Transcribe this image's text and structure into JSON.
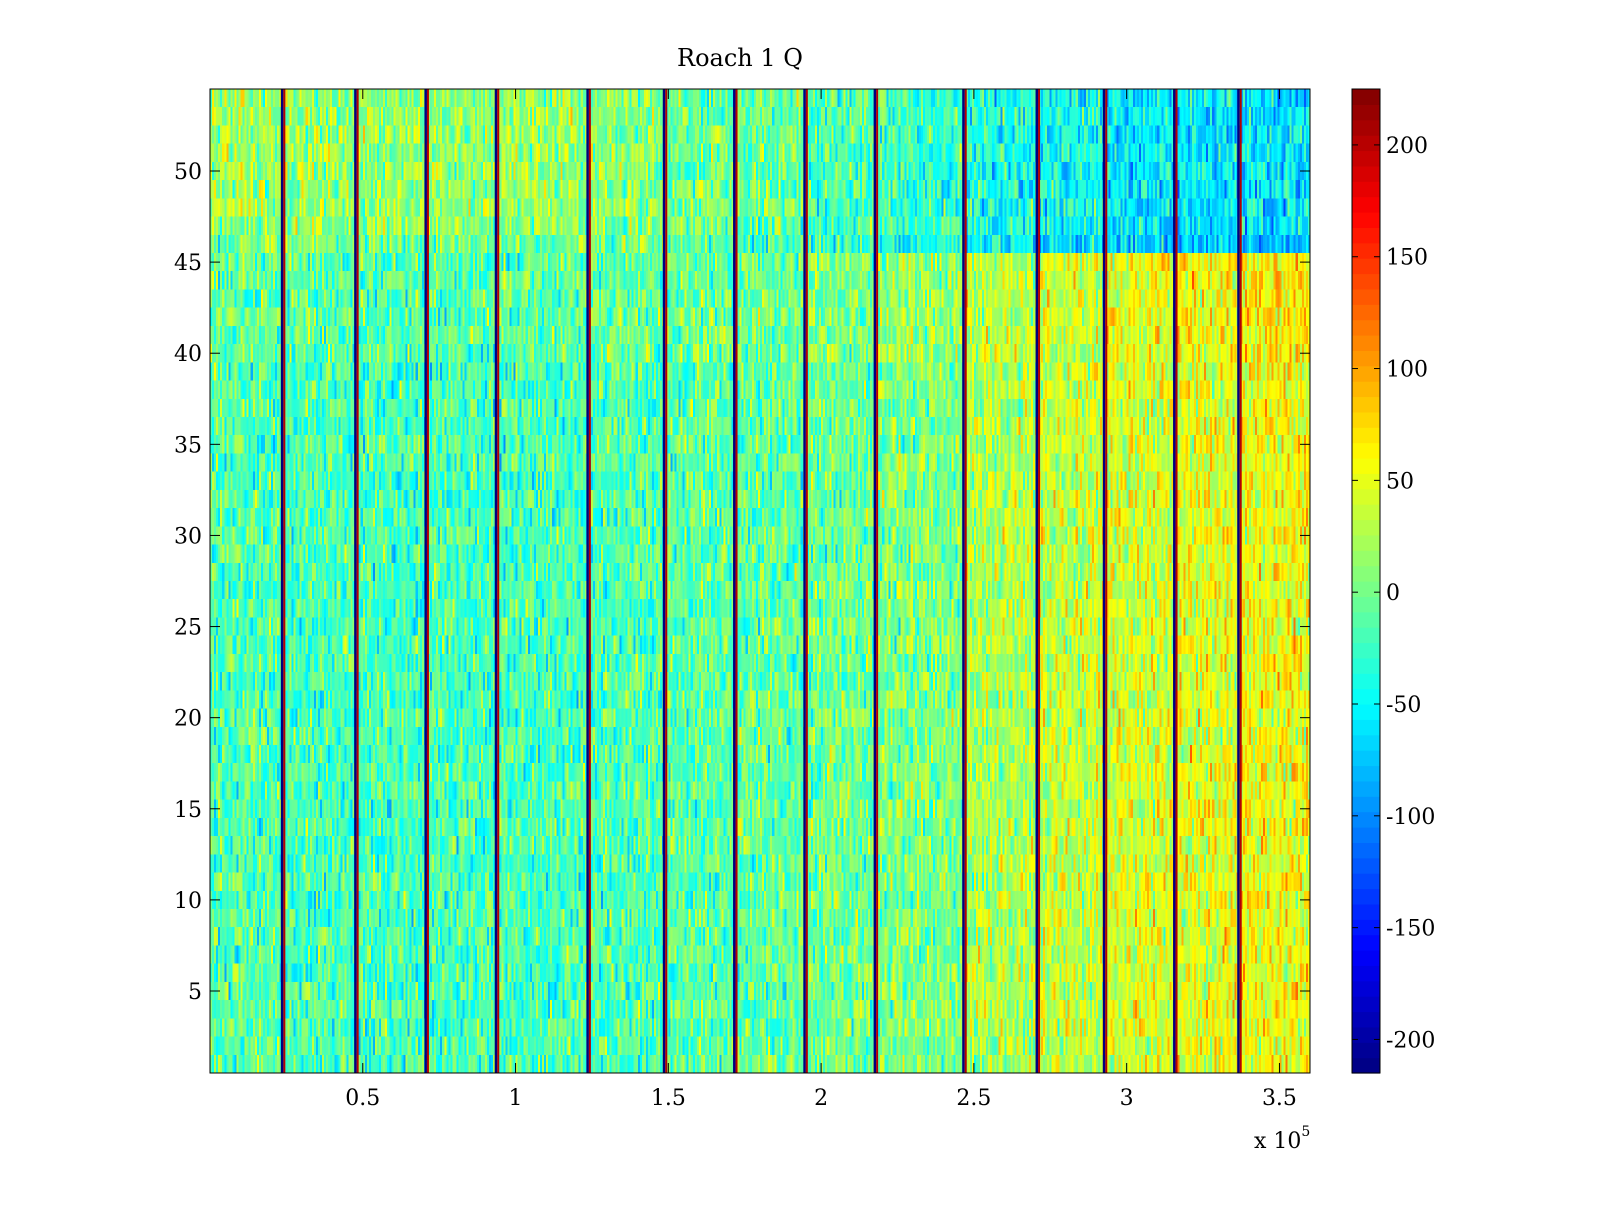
{
  "figure": {
    "background": "#ffffff"
  },
  "chart_data": {
    "type": "heatmap",
    "title": "Roach 1 Q",
    "xlabel": "",
    "ylabel": "",
    "x_multiplier_label": {
      "base": "x 10",
      "exponent": "5"
    },
    "xlim": [
      0,
      360000
    ],
    "ylim": [
      0.5,
      54.5
    ],
    "x_ticks": [
      50000,
      100000,
      150000,
      200000,
      250000,
      300000,
      350000
    ],
    "x_tick_labels": [
      "0.5",
      "1",
      "1.5",
      "2",
      "2.5",
      "3",
      "3.5"
    ],
    "y_ticks": [
      5,
      10,
      15,
      20,
      25,
      30,
      35,
      40,
      45,
      50
    ],
    "y_tick_labels": [
      "5",
      "10",
      "15",
      "20",
      "25",
      "30",
      "35",
      "40",
      "45",
      "50"
    ],
    "rows": 54,
    "colormap": "jet",
    "colorbar": {
      "clim": [
        -215,
        225
      ],
      "ticks": [
        -200,
        -150,
        -100,
        -50,
        0,
        50,
        100,
        150,
        200
      ],
      "tick_labels": [
        "-200",
        "-150",
        "-100",
        "-50",
        "0",
        "50",
        "100",
        "150",
        "200"
      ]
    },
    "segment_boundaries_x": [
      24000,
      48000,
      71000,
      94000,
      124000,
      149000,
      172000,
      195000,
      218000,
      247000,
      271000,
      293000,
      316000,
      337000
    ],
    "segments": [
      {
        "x_range": [
          0,
          24000
        ],
        "mean_level_rows_1_45": -15,
        "mean_level_rows_46_54": 20
      },
      {
        "x_range": [
          24000,
          48000
        ],
        "mean_level_rows_1_45": -18,
        "mean_level_rows_46_54": 15
      },
      {
        "x_range": [
          48000,
          71000
        ],
        "mean_level_rows_1_45": -20,
        "mean_level_rows_46_54": 15
      },
      {
        "x_range": [
          71000,
          94000
        ],
        "mean_level_rows_1_45": -20,
        "mean_level_rows_46_54": 15
      },
      {
        "x_range": [
          94000,
          124000
        ],
        "mean_level_rows_1_45": -18,
        "mean_level_rows_46_54": 15
      },
      {
        "x_range": [
          124000,
          149000
        ],
        "mean_level_rows_1_45": -15,
        "mean_level_rows_46_54": 10
      },
      {
        "x_range": [
          149000,
          172000
        ],
        "mean_level_rows_1_45": -10,
        "mean_level_rows_46_54": 0
      },
      {
        "x_range": [
          172000,
          195000
        ],
        "mean_level_rows_1_45": -8,
        "mean_level_rows_46_54": -5
      },
      {
        "x_range": [
          195000,
          218000
        ],
        "mean_level_rows_1_45": -2,
        "mean_level_rows_46_54": -15
      },
      {
        "x_range": [
          218000,
          247000
        ],
        "mean_level_rows_1_45": 5,
        "mean_level_rows_46_54": -25
      },
      {
        "x_range": [
          247000,
          271000
        ],
        "mean_level_rows_1_45": 25,
        "mean_level_rows_46_54": -40
      },
      {
        "x_range": [
          271000,
          293000
        ],
        "mean_level_rows_1_45": 35,
        "mean_level_rows_46_54": -45
      },
      {
        "x_range": [
          293000,
          316000
        ],
        "mean_level_rows_1_45": 42,
        "mean_level_rows_46_54": -55
      },
      {
        "x_range": [
          316000,
          337000
        ],
        "mean_level_rows_1_45": 50,
        "mean_level_rows_46_54": -60
      },
      {
        "x_range": [
          337000,
          360000
        ],
        "mean_level_rows_1_45": 55,
        "mean_level_rows_46_54": -60
      }
    ]
  }
}
